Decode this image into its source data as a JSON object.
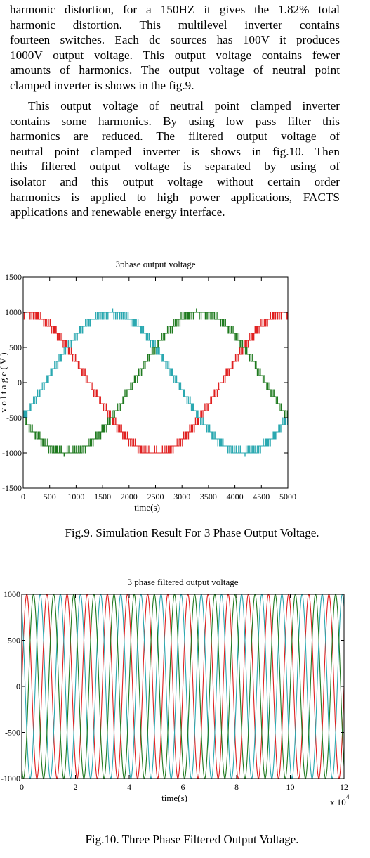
{
  "paragraphs": [
    {
      "lines": [
        "harmonic distortion, for a 150HZ it gives the 1.82% total",
        "harmonic distortion. This multilevel inverter contains",
        "fourteen switches. Each dc sources has 100V it produces",
        "1000V output voltage. This output voltage contains fewer",
        "amounts of harmonics. The output voltage of neutral point",
        "clamped inverter is shows in the fig.9."
      ]
    },
    {
      "lines": [
        "This output voltage of neutral point clamped inverter",
        "contains some harmonics. By using low pass filter this",
        "harmonics are reduced. The filtered output voltage of",
        "neutral point clamped inverter is shows in fig.10. Then",
        "this filtered output voltage is separated by using of",
        "isolator and this output voltage without certain order",
        "harmonics is applied to high power applications, FACTS",
        "applications and renewable energy interface."
      ]
    }
  ],
  "figures": [
    {
      "caption": "Fig.9. Simulation Result For 3 Phase Output Voltage."
    },
    {
      "caption": "Fig.10. Three Phase Filtered Output Voltage."
    }
  ],
  "chart_data": [
    {
      "type": "line",
      "title": "3phase output voltage",
      "xlabel": "time(s)",
      "ylabel": "v o l t a g e ( V )",
      "xlim": [
        0,
        5000
      ],
      "ylim": [
        -1500,
        1500
      ],
      "x_ticks": [
        "0",
        "500",
        "1000",
        "1500",
        "2000",
        "2500",
        "3000",
        "3500",
        "4000",
        "4500",
        "5000"
      ],
      "y_ticks": [
        "1500",
        "1000",
        "500",
        "0",
        "-500",
        "-1000",
        "-1500"
      ],
      "grid": false,
      "legend": "none",
      "waveform": "stepped-sinusoid",
      "amplitude": 1000,
      "period": 5000,
      "series": [
        {
          "color": "#e02020",
          "phase_deg": 90
        },
        {
          "color": "#2aa8b0",
          "phase_deg": -30
        },
        {
          "color": "#1f7a1f",
          "phase_deg": -150
        }
      ]
    },
    {
      "type": "line",
      "title": "3 phase filtered output voltage",
      "xlabel": "time(s)",
      "ylabel": "",
      "x_multiplier": "x 10",
      "x_multiplier_exp": "4",
      "xlim": [
        0,
        12
      ],
      "ylim": [
        -1000,
        1000
      ],
      "x_ticks": [
        "0",
        "2",
        "4",
        "6",
        "8",
        "10",
        "12"
      ],
      "y_ticks": [
        "1000",
        "500",
        "0",
        "-500",
        "-1000"
      ],
      "grid": false,
      "legend": "none",
      "waveform": "sinusoid",
      "amplitude": 1000,
      "cycles": 16,
      "series": [
        {
          "color": "#e02020",
          "phase_deg": 0
        },
        {
          "color": "#2aa8b0",
          "phase_deg": 120
        },
        {
          "color": "#1f7a1f",
          "phase_deg": -120
        }
      ]
    }
  ]
}
